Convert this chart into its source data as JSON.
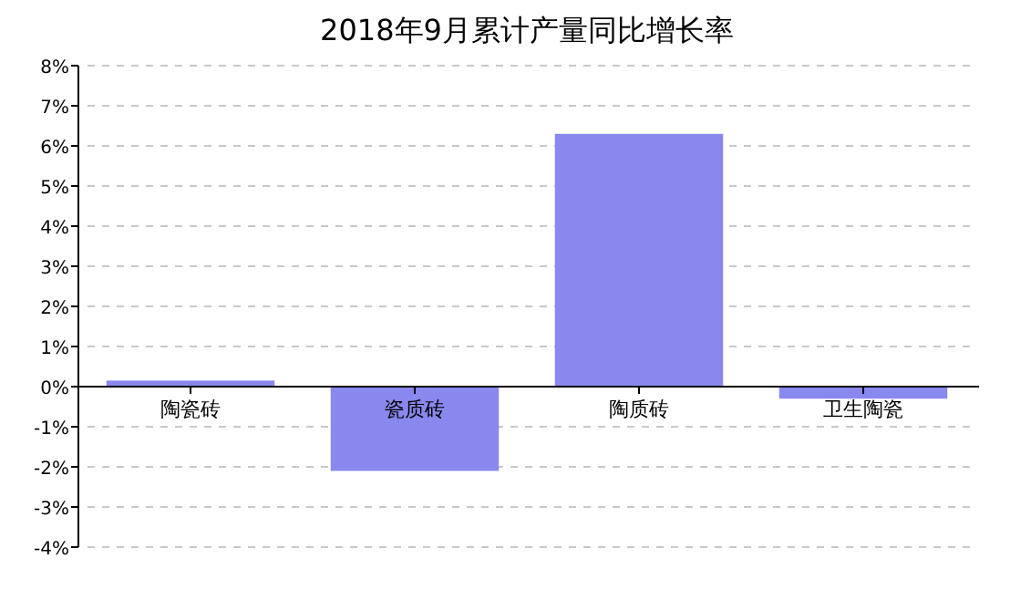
{
  "chart_data": {
    "type": "bar",
    "title": "2018年9月累计产量同比增长率",
    "categories": [
      "陶瓷砖",
      "瓷质砖",
      "陶质砖",
      "卫生陶瓷"
    ],
    "values": [
      0.15,
      -2.1,
      6.3,
      -0.3
    ],
    "color": "#8888ee",
    "ylim": [
      -4,
      8
    ],
    "yticks": [
      {
        "value": -4,
        "label": "-4%"
      },
      {
        "value": -3,
        "label": "-3%"
      },
      {
        "value": -2,
        "label": "-2%"
      },
      {
        "value": -1,
        "label": "-1%"
      },
      {
        "value": 0,
        "label": "0%"
      },
      {
        "value": 1,
        "label": "1%"
      },
      {
        "value": 2,
        "label": "2%"
      },
      {
        "value": 3,
        "label": "3%"
      },
      {
        "value": 4,
        "label": "4%"
      },
      {
        "value": 5,
        "label": "5%"
      },
      {
        "value": 6,
        "label": "6%"
      },
      {
        "value": 7,
        "label": "7%"
      },
      {
        "value": 8,
        "label": "8%"
      }
    ],
    "grid": "y"
  }
}
